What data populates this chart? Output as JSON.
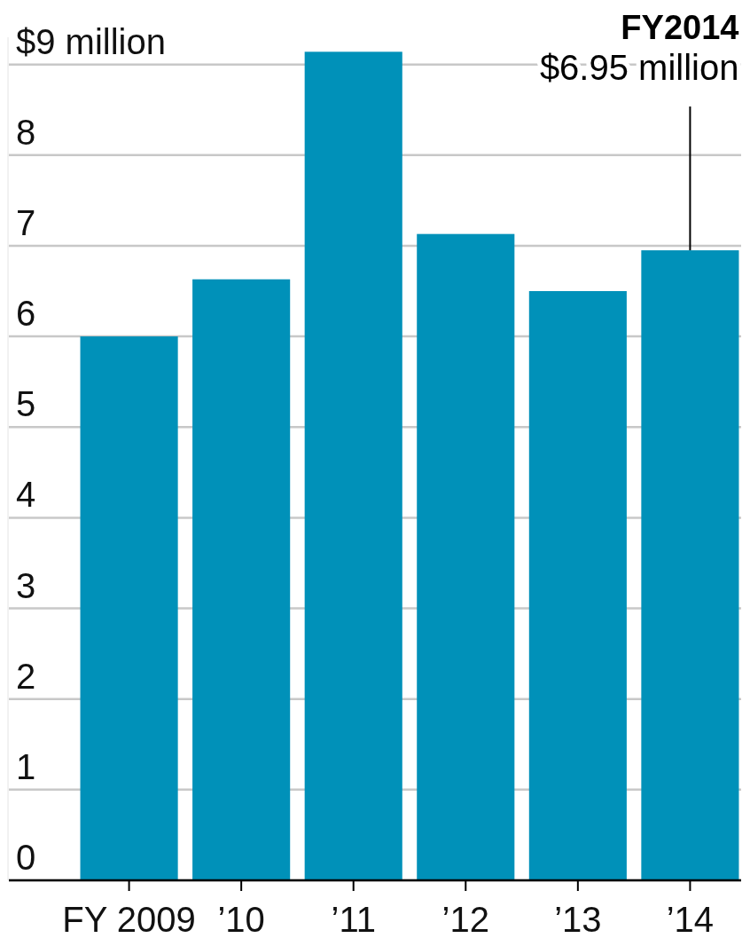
{
  "chart_data": {
    "type": "bar",
    "categories": [
      "FY 2009",
      "’10",
      "’11",
      "’12",
      "’13",
      "’14"
    ],
    "values": [
      6.0,
      6.63,
      9.14,
      7.13,
      6.5,
      6.95
    ],
    "color": "#0091b9",
    "ylim": [
      0,
      9.3
    ],
    "yticks": [
      0,
      1,
      2,
      3,
      4,
      5,
      6,
      7,
      8,
      {
        "value": 9,
        "label": "$9 million"
      }
    ],
    "grid": "y",
    "annotations": [
      {
        "text": "FY2014\n$6.95 million",
        "x": "’14",
        "y": 6.95
      }
    ]
  }
}
